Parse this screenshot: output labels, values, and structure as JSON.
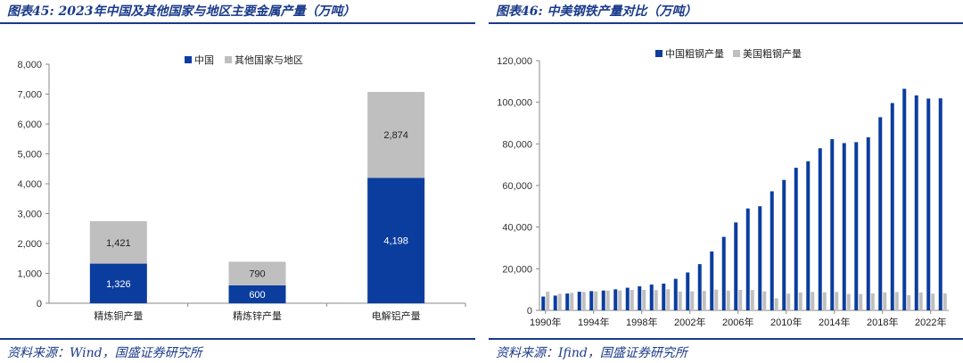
{
  "left": {
    "title": "图表45:  2023年中国及其他国家与地区主要金属产量（万吨）",
    "source": "资料来源：Wind，国盛证券研究所",
    "chart_data": {
      "type": "bar",
      "stacked": true,
      "categories": [
        "精炼铜产量",
        "精炼锌产量",
        "电解铝产量"
      ],
      "series": [
        {
          "name": "中国",
          "values": [
            1326,
            600,
            4198
          ],
          "color": "#0b3d9e"
        },
        {
          "name": "其他国家与地区",
          "values": [
            1421,
            790,
            2874
          ],
          "color": "#bfbfbf"
        }
      ],
      "ylim": [
        0,
        8000
      ],
      "yticks": [
        "0",
        "1,000",
        "2,000",
        "3,000",
        "4,000",
        "5,000",
        "6,000",
        "7,000",
        "8,000"
      ],
      "data_labels": [
        [
          "1,326",
          "600",
          "4,198"
        ],
        [
          "1,421",
          "790",
          "2,874"
        ]
      ],
      "legend_position": "top-right",
      "grid": false
    }
  },
  "right": {
    "title": "图表46:  中美钢铁产量对比（万吨）",
    "source": "资料来源：Ifind，国盛证券研究所",
    "chart_data": {
      "type": "bar",
      "x": [
        1990,
        1991,
        1992,
        1993,
        1994,
        1995,
        1996,
        1997,
        1998,
        1999,
        2000,
        2001,
        2002,
        2003,
        2004,
        2005,
        2006,
        2007,
        2008,
        2009,
        2010,
        2011,
        2012,
        2013,
        2014,
        2015,
        2016,
        2017,
        2018,
        2019,
        2020,
        2021,
        2022,
        2023
      ],
      "xtick_labels": [
        "1990年",
        "1994年",
        "1998年",
        "2002年",
        "2006年",
        "2010年",
        "2014年",
        "2018年",
        "2022年"
      ],
      "series": [
        {
          "name": "中国粗钢产量",
          "color": "#0b3d9e",
          "values": [
            6635,
            7100,
            8094,
            8956,
            9261,
            9536,
            10124,
            10894,
            11559,
            12395,
            12850,
            15163,
            18225,
            22234,
            28291,
            35324,
            42266,
            48971,
            50049,
            57218,
            62696,
            68528,
            71654,
            77904,
            82270,
            80383,
            80837,
            83173,
            92826,
            99634,
            106477,
            103279,
            101796,
            101908
          ]
        },
        {
          "name": "美国粗钢产量",
          "color": "#bfbfbf",
          "values": [
            8973,
            7975,
            8424,
            8881,
            9108,
            9519,
            9535,
            9848,
            9865,
            9738,
            10180,
            9014,
            9158,
            9368,
            9968,
            9490,
            9863,
            9810,
            9136,
            5820,
            8050,
            8640,
            8870,
            8690,
            8820,
            7880,
            7850,
            8160,
            8670,
            8790,
            7270,
            8580,
            8070,
            8170
          ]
        }
      ],
      "ylim": [
        0,
        120000
      ],
      "yticks": [
        "0",
        "20,000",
        "40,000",
        "60,000",
        "80,000",
        "100,000",
        "120,000"
      ],
      "legend_position": "top-center",
      "grid": false
    }
  }
}
